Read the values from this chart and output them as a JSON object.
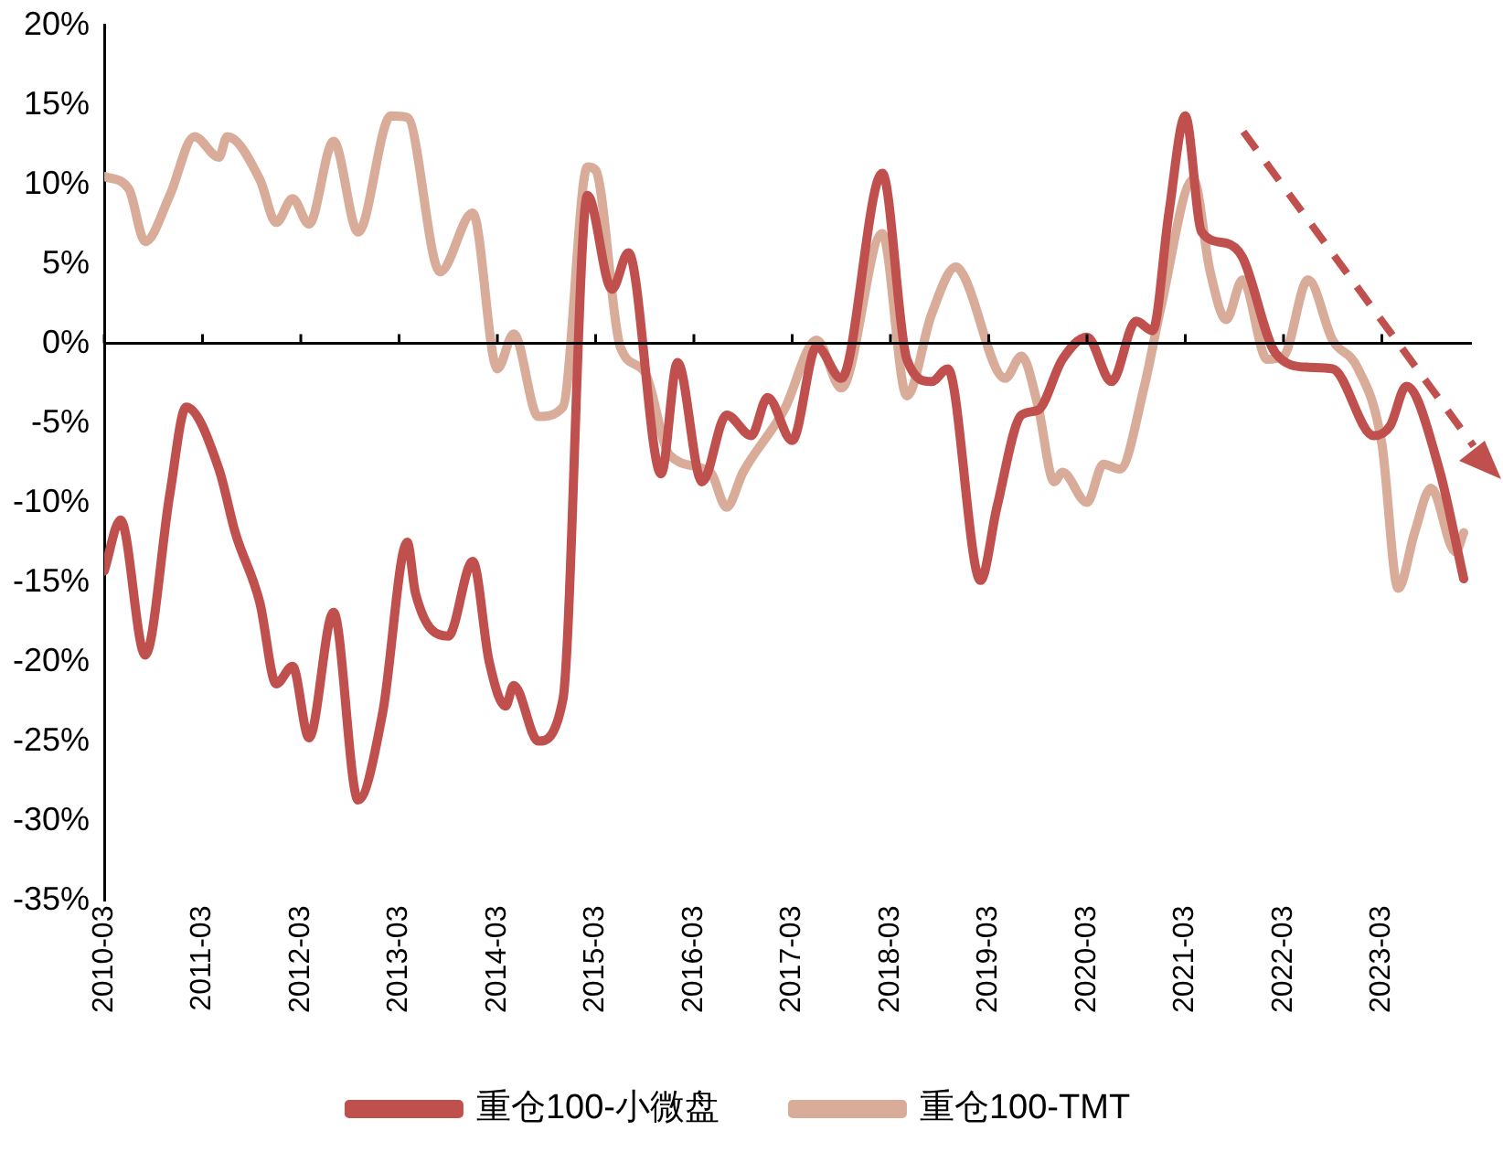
{
  "chart_data": {
    "type": "line",
    "xlim": [
      "2010-03",
      "2024-02"
    ],
    "xticks": [
      "2010-03",
      "2011-03",
      "2012-03",
      "2013-03",
      "2014-03",
      "2015-03",
      "2016-03",
      "2017-03",
      "2018-03",
      "2019-03",
      "2020-03",
      "2021-03",
      "2022-03",
      "2023-03"
    ],
    "ylim": [
      -35,
      20
    ],
    "yticks": [
      {
        "value": -35,
        "label": "-35%"
      },
      {
        "value": -30,
        "label": "-30%"
      },
      {
        "value": -25,
        "label": "-25%"
      },
      {
        "value": -20,
        "label": "-20%"
      },
      {
        "value": -15,
        "label": "-15%"
      },
      {
        "value": -10,
        "label": "-10%"
      },
      {
        "value": -5,
        "label": "-5%"
      },
      {
        "value": 0,
        "label": "0%"
      },
      {
        "value": 5,
        "label": "5%"
      },
      {
        "value": 10,
        "label": "10%"
      },
      {
        "value": 15,
        "label": "15%"
      },
      {
        "value": 20,
        "label": "20%"
      }
    ],
    "grid": false,
    "legend": "bottom",
    "marker": "none",
    "line_style": "solid",
    "ref_lines": [
      {
        "axis": "y",
        "value": 0,
        "color": "#000000"
      }
    ],
    "series": [
      {
        "name": "重仓100-小微盘",
        "color": "#c0504d",
        "x": [
          "2010-03",
          "2010-05",
          "2010-08",
          "2010-11",
          "2011-01",
          "2011-05",
          "2011-07",
          "2011-10",
          "2011-12",
          "2012-02",
          "2012-04",
          "2012-07",
          "2012-10",
          "2013-01",
          "2013-04",
          "2013-05",
          "2013-09",
          "2013-12",
          "2014-02",
          "2014-04",
          "2014-05",
          "2014-08",
          "2014-11",
          "2015-02",
          "2015-05",
          "2015-07",
          "2015-11",
          "2016-01",
          "2016-04",
          "2016-07",
          "2016-10",
          "2016-12",
          "2017-03",
          "2017-06",
          "2017-09",
          "2018-02",
          "2018-05",
          "2018-08",
          "2018-10",
          "2019-02",
          "2019-04",
          "2019-07",
          "2019-09",
          "2019-12",
          "2020-03",
          "2020-06",
          "2020-09",
          "2020-11",
          "2021-01",
          "2021-03",
          "2021-05",
          "2021-08",
          "2021-10",
          "2022-02",
          "2022-06",
          "2022-09",
          "2023-02",
          "2023-04",
          "2023-06",
          "2023-10",
          "2024-01"
        ],
        "values": [
          -14.3,
          -11.1,
          -19.6,
          -9.5,
          -4.0,
          -7.9,
          -11.9,
          -16.3,
          -21.4,
          -20.3,
          -24.8,
          -16.9,
          -28.7,
          -23.2,
          -12.5,
          -15.7,
          -18.4,
          -13.7,
          -20.0,
          -22.8,
          -21.5,
          -25.0,
          -22.4,
          9.3,
          3.4,
          5.7,
          -8.2,
          -1.2,
          -8.7,
          -4.5,
          -5.8,
          -3.4,
          -6.1,
          -0.2,
          -2.2,
          10.7,
          -1.0,
          -2.4,
          -1.6,
          -14.9,
          -10.3,
          -4.5,
          -4.2,
          -1.0,
          0.4,
          -2.4,
          1.4,
          0.8,
          8.2,
          14.3,
          7.0,
          6.3,
          5.4,
          -0.6,
          -1.5,
          -1.6,
          -5.8,
          -5.2,
          -2.7,
          -7.9,
          -14.8
        ]
      },
      {
        "name": "重仓100-TMT",
        "color": "#d9ab99",
        "x": [
          "2010-03",
          "2010-06",
          "2010-08",
          "2010-11",
          "2011-02",
          "2011-05",
          "2011-06",
          "2011-10",
          "2011-12",
          "2012-02",
          "2012-04",
          "2012-07",
          "2012-10",
          "2013-02",
          "2013-04",
          "2013-08",
          "2013-12",
          "2014-03",
          "2014-05",
          "2014-08",
          "2014-11",
          "2015-02",
          "2015-03",
          "2015-06",
          "2015-09",
          "2015-12",
          "2016-05",
          "2016-07",
          "2016-09",
          "2017-02",
          "2017-06",
          "2017-09",
          "2018-02",
          "2018-05",
          "2018-08",
          "2018-11",
          "2018-12",
          "2019-05",
          "2019-07",
          "2019-09",
          "2019-11",
          "2019-12",
          "2020-03",
          "2020-05",
          "2020-07",
          "2020-10",
          "2020-12",
          "2021-04",
          "2021-06",
          "2021-08",
          "2021-10",
          "2022-01",
          "2022-03",
          "2022-06",
          "2022-09",
          "2022-12",
          "2023-03",
          "2023-05",
          "2023-07",
          "2023-09",
          "2023-12",
          "2024-01"
        ],
        "values": [
          10.5,
          9.7,
          6.4,
          9.3,
          13.0,
          11.7,
          13.0,
          10.3,
          7.6,
          9.1,
          7.5,
          12.7,
          7.0,
          14.3,
          14.2,
          4.5,
          8.2,
          -1.6,
          0.6,
          -4.6,
          -4.0,
          11.1,
          10.9,
          -0.2,
          -1.8,
          -7.0,
          -8.1,
          -10.3,
          -8.1,
          -4.2,
          0.2,
          -2.8,
          6.9,
          -3.3,
          1.8,
          4.8,
          4.2,
          -2.2,
          -0.8,
          -3.9,
          -8.7,
          -8.1,
          -10.0,
          -7.6,
          -7.9,
          -2.7,
          2.2,
          10.3,
          4.6,
          1.5,
          4.0,
          -1.0,
          -0.8,
          4.0,
          0.2,
          -1.5,
          -6.3,
          -15.4,
          -11.9,
          -9.1,
          -13.1,
          -11.9
        ]
      }
    ]
  }
}
